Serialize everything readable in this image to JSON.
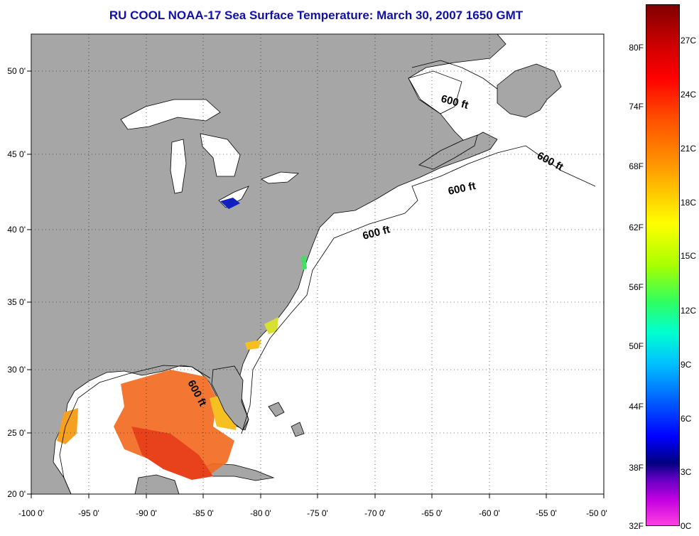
{
  "title": "RU COOL  NOAA-17  Sea Surface Temperature:  March 30, 2007 1650 GMT",
  "map": {
    "lon_ticks": [
      "-100 0'",
      "-95 0'",
      "-90 0'",
      "-85 0'",
      "-80 0'",
      "-75 0'",
      "-70 0'",
      "-65 0'",
      "-60 0'",
      "-55 0'",
      "-50 0'"
    ],
    "lat_ticks": [
      "50 0'",
      "45 0'",
      "40 0'",
      "35 0'",
      "30 0'",
      "25 0'",
      "20 0'"
    ],
    "contour_label": "600 ft",
    "colors": {
      "land": "#a6a6a6",
      "ocean": "#ffffff"
    }
  },
  "colorbar": {
    "fahrenheit": [
      "80F",
      "74F",
      "68F",
      "62F",
      "56F",
      "50F",
      "44F",
      "38F",
      "32F"
    ],
    "celsius": [
      "27C",
      "24C",
      "21C",
      "18C",
      "15C",
      "12C",
      "9C",
      "6C",
      "3C",
      "0C"
    ]
  }
}
